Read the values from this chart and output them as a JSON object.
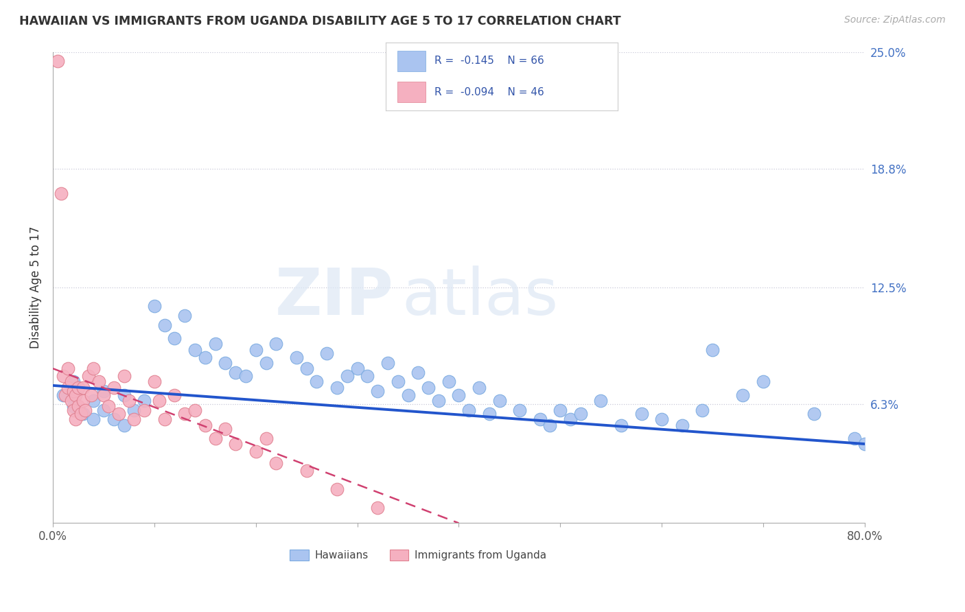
{
  "title": "HAWAIIAN VS IMMIGRANTS FROM UGANDA DISABILITY AGE 5 TO 17 CORRELATION CHART",
  "source": "Source: ZipAtlas.com",
  "ylabel": "Disability Age 5 to 17",
  "xlim": [
    0,
    0.8
  ],
  "ylim": [
    0,
    0.25
  ],
  "ytick_positions": [
    0.0,
    0.063,
    0.125,
    0.188,
    0.25
  ],
  "ytick_labels": [
    "",
    "6.3%",
    "12.5%",
    "18.8%",
    "25.0%"
  ],
  "R_hawaiian": -0.145,
  "N_hawaiian": 66,
  "R_uganda": -0.094,
  "N_uganda": 46,
  "hawaiian_color": "#aac4f0",
  "hawaiian_edge": "#7aaae0",
  "uganda_color": "#f5b0c0",
  "uganda_edge": "#e08090",
  "trend_hawaiian_color": "#2255cc",
  "trend_uganda_color": "#d04070",
  "legend_label_hawaiian": "Hawaiians",
  "legend_label_uganda": "Immigrants from Uganda",
  "watermark": "ZIPatlas",
  "background_color": "#ffffff",
  "grid_color": "#c8c8d8",
  "h_trend_x0": 0.0,
  "h_trend_y0": 0.073,
  "h_trend_x1": 0.8,
  "h_trend_y1": 0.042,
  "u_trend_x0": 0.0,
  "u_trend_y0": 0.082,
  "u_trend_x1": 0.4,
  "u_trend_y1": 0.0
}
